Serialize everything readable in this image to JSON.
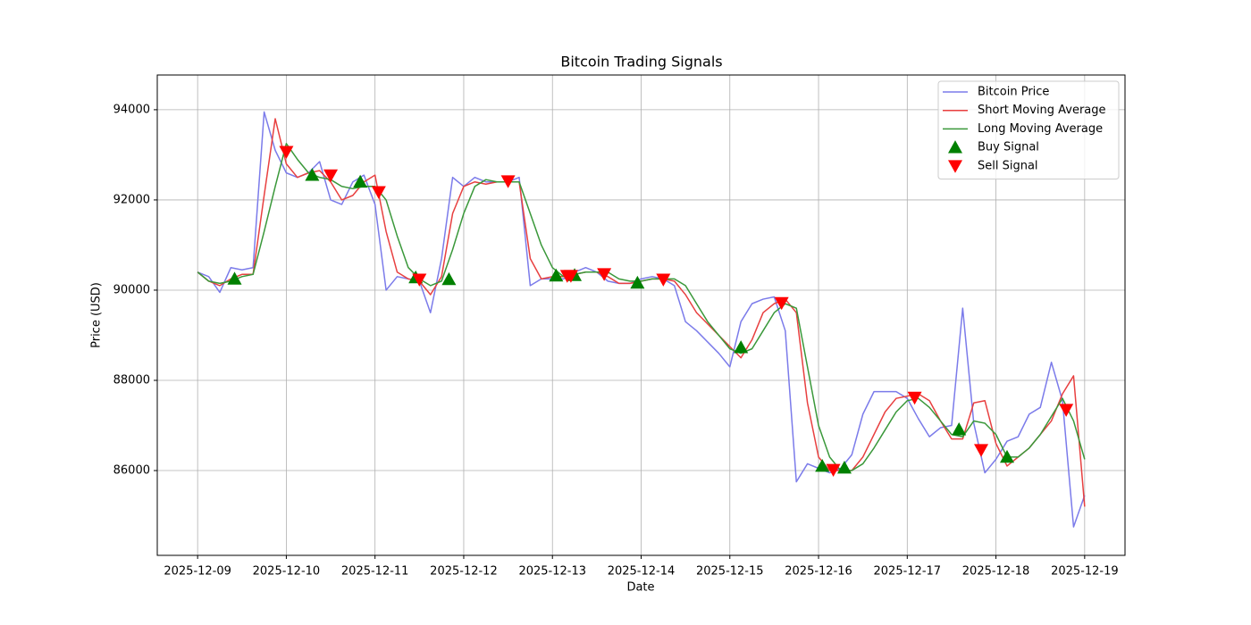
{
  "chart_data": {
    "type": "line",
    "title": "Bitcoin Trading Signals",
    "xlabel": "Date",
    "ylabel": "Price (USD)",
    "x": [
      "2025-12-09T00:00",
      "2025-12-09T03:00",
      "2025-12-09T06:00",
      "2025-12-09T09:00",
      "2025-12-09T12:00",
      "2025-12-09T15:00",
      "2025-12-09T18:00",
      "2025-12-09T21:00",
      "2025-12-10T00:00",
      "2025-12-10T03:00",
      "2025-12-10T06:00",
      "2025-12-10T09:00",
      "2025-12-10T12:00",
      "2025-12-10T15:00",
      "2025-12-10T18:00",
      "2025-12-10T21:00",
      "2025-12-11T00:00",
      "2025-12-11T03:00",
      "2025-12-11T06:00",
      "2025-12-11T09:00",
      "2025-12-11T12:00",
      "2025-12-11T15:00",
      "2025-12-11T18:00",
      "2025-12-11T21:00",
      "2025-12-12T00:00",
      "2025-12-12T03:00",
      "2025-12-12T06:00",
      "2025-12-12T09:00",
      "2025-12-12T12:00",
      "2025-12-12T15:00",
      "2025-12-12T18:00",
      "2025-12-12T21:00",
      "2025-12-13T00:00",
      "2025-12-13T03:00",
      "2025-12-13T06:00",
      "2025-12-13T09:00",
      "2025-12-13T12:00",
      "2025-12-13T15:00",
      "2025-12-13T18:00",
      "2025-12-13T21:00",
      "2025-12-14T00:00",
      "2025-12-14T03:00",
      "2025-12-14T06:00",
      "2025-12-14T09:00",
      "2025-12-14T12:00",
      "2025-12-14T15:00",
      "2025-12-14T18:00",
      "2025-12-14T21:00",
      "2025-12-15T00:00",
      "2025-12-15T03:00",
      "2025-12-15T06:00",
      "2025-12-15T09:00",
      "2025-12-15T12:00",
      "2025-12-15T15:00",
      "2025-12-15T18:00",
      "2025-12-15T21:00",
      "2025-12-16T00:00",
      "2025-12-16T03:00",
      "2025-12-16T06:00",
      "2025-12-16T09:00",
      "2025-12-16T12:00",
      "2025-12-16T15:00",
      "2025-12-16T18:00",
      "2025-12-16T21:00",
      "2025-12-17T00:00",
      "2025-12-17T03:00",
      "2025-12-17T06:00",
      "2025-12-17T09:00",
      "2025-12-17T12:00",
      "2025-12-17T15:00",
      "2025-12-17T18:00",
      "2025-12-17T21:00",
      "2025-12-18T00:00",
      "2025-12-18T03:00",
      "2025-12-18T06:00",
      "2025-12-18T09:00",
      "2025-12-18T12:00",
      "2025-12-18T15:00",
      "2025-12-18T18:00",
      "2025-12-18T21:00",
      "2025-12-19T00:00"
    ],
    "series": [
      {
        "name": "Bitcoin Price",
        "color": "#7b7bea",
        "width": 1.5,
        "values": [
          90400,
          90300,
          89950,
          90500,
          90450,
          90500,
          93950,
          93100,
          92600,
          92500,
          92600,
          92850,
          92000,
          91900,
          92400,
          92550,
          91900,
          90000,
          90300,
          90250,
          90200,
          89500,
          90700,
          92500,
          92300,
          92500,
          92400,
          92400,
          92400,
          92500,
          90100,
          90250,
          90250,
          90250,
          90400,
          90500,
          90400,
          90200,
          90150,
          90150,
          90250,
          90300,
          90250,
          90100,
          89300,
          89100,
          88850,
          88600,
          88300,
          89300,
          89700,
          89800,
          89850,
          89100,
          85750,
          86150,
          86050,
          85950,
          86050,
          86350,
          87250,
          87750,
          87750,
          87750,
          87600,
          87150,
          86750,
          86950,
          87000,
          89600,
          87050,
          85950,
          86250,
          86650,
          86750,
          87250,
          87400,
          88400,
          87550,
          84750,
          85450
        ]
      },
      {
        "name": "Short Moving Average",
        "color": "#e84040",
        "width": 1.5,
        "values": [
          90400,
          90200,
          90100,
          90250,
          90350,
          90350,
          92100,
          93800,
          92800,
          92500,
          92600,
          92650,
          92400,
          92000,
          92100,
          92400,
          92550,
          91300,
          90400,
          90250,
          90200,
          89900,
          90300,
          91700,
          92300,
          92400,
          92350,
          92400,
          92400,
          92400,
          90700,
          90250,
          90300,
          90300,
          90350,
          90400,
          90400,
          90300,
          90150,
          90150,
          90200,
          90250,
          90250,
          90200,
          89900,
          89500,
          89250,
          89000,
          88750,
          88500,
          88900,
          89500,
          89700,
          89800,
          89500,
          87500,
          86300,
          86000,
          86000,
          86000,
          86300,
          86800,
          87300,
          87600,
          87650,
          87700,
          87550,
          87100,
          86700,
          86700,
          87500,
          87550,
          86600,
          86100,
          86300,
          86500,
          86800,
          87100,
          87700,
          88100,
          85200
        ]
      },
      {
        "name": "Long Moving Average",
        "color": "#3a983a",
        "width": 1.5,
        "values": [
          90400,
          90200,
          90150,
          90200,
          90300,
          90350,
          91300,
          92300,
          93250,
          92900,
          92600,
          92500,
          92450,
          92300,
          92250,
          92300,
          92300,
          92000,
          91200,
          90500,
          90250,
          90100,
          90200,
          90900,
          91700,
          92300,
          92450,
          92400,
          92400,
          92400,
          91700,
          91000,
          90500,
          90300,
          90350,
          90400,
          90400,
          90400,
          90250,
          90200,
          90200,
          90250,
          90250,
          90250,
          90100,
          89700,
          89300,
          89000,
          88700,
          88600,
          88700,
          89100,
          89500,
          89700,
          89600,
          88300,
          87000,
          86300,
          86000,
          86000,
          86150,
          86500,
          86900,
          87300,
          87550,
          87600,
          87400,
          87100,
          86800,
          86750,
          87100,
          87050,
          86800,
          86300,
          86300,
          86500,
          86800,
          87200,
          87600,
          87100,
          86250
        ]
      },
      {
        "name": "Buy Signal",
        "color": "#008000",
        "marker": "up",
        "x": [
          "2025-12-09T10:00",
          "2025-12-10T07:00",
          "2025-12-10T20:00",
          "2025-12-11T11:00",
          "2025-12-11T20:00",
          "2025-12-13T01:00",
          "2025-12-13T06:00",
          "2025-12-13T23:00",
          "2025-12-15T03:00",
          "2025-12-16T01:00",
          "2025-12-16T07:00",
          "2025-12-17T14:00",
          "2025-12-18T03:00"
        ],
        "values": [
          90250,
          92550,
          92400,
          90280,
          90240,
          90320,
          90330,
          90160,
          88730,
          86100,
          86060,
          86910,
          86300
        ]
      },
      {
        "name": "Sell Signal",
        "color": "#ff0000",
        "marker": "down",
        "x": [
          "2025-12-10T00:00",
          "2025-12-10T12:00",
          "2025-12-11T01:00",
          "2025-12-11T12:00",
          "2025-12-12T12:00",
          "2025-12-13T04:00",
          "2025-12-13T05:00",
          "2025-12-13T14:00",
          "2025-12-14T06:00",
          "2025-12-15T14:00",
          "2025-12-16T04:00",
          "2025-12-17T02:00",
          "2025-12-17T20:00",
          "2025-12-18T19:00"
        ],
        "values": [
          93070,
          92550,
          92180,
          90240,
          92420,
          90320,
          90320,
          90360,
          90240,
          89720,
          86020,
          87620,
          86460,
          87350
        ]
      }
    ],
    "xlim": [
      "2025-12-08T13:05",
      "2025-12-19T10:55"
    ],
    "xticks": [
      "2025-12-09",
      "2025-12-10",
      "2025-12-11",
      "2025-12-12",
      "2025-12-13",
      "2025-12-14",
      "2025-12-15",
      "2025-12-16",
      "2025-12-17",
      "2025-12-18",
      "2025-12-19"
    ],
    "ylim": [
      84120,
      94770
    ],
    "yticks": [
      86000,
      88000,
      90000,
      92000,
      94000
    ],
    "grid": true,
    "legend": "upper right"
  }
}
